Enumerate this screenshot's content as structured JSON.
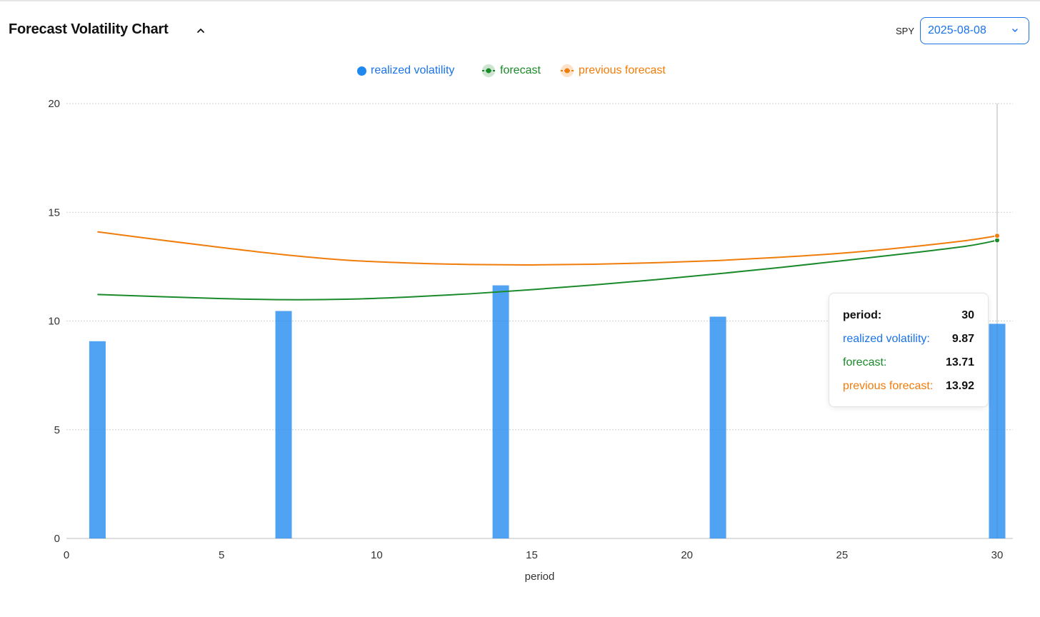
{
  "header": {
    "title": "Forecast Volatility Chart",
    "ticker": "SPY",
    "date_value": "2025-08-08"
  },
  "legend": [
    {
      "name": "realized volatility",
      "color": "#1f88ee"
    },
    {
      "name": "forecast",
      "color": "#1a8a2a"
    },
    {
      "name": "previous forecast",
      "color": "#f07c0a"
    }
  ],
  "tooltip": {
    "period_label": "period:",
    "period_value": "30",
    "rv_label": "realized volatility:",
    "rv_value": "9.87",
    "fc_label": "forecast:",
    "fc_value": "13.71",
    "pf_label": "previous forecast:",
    "pf_value": "13.92"
  },
  "chart_data": {
    "type": "bar",
    "xlabel": "period",
    "ylabel": "",
    "xlim": [
      0,
      30
    ],
    "ylim": [
      0,
      20
    ],
    "xticks": [
      0,
      5,
      10,
      15,
      20,
      25,
      30
    ],
    "yticks": [
      0,
      5,
      10,
      15,
      20
    ],
    "grid": true,
    "legend_position": "top-center",
    "hover_x": 30,
    "series": [
      {
        "name": "realized volatility",
        "type": "bar",
        "color": "#1f88ee",
        "x": [
          1,
          7,
          14,
          21,
          30
        ],
        "values": [
          9.07,
          10.46,
          11.64,
          10.2,
          9.87
        ]
      },
      {
        "name": "forecast",
        "type": "line",
        "color": "#1a8a2a",
        "x": [
          1,
          3,
          5,
          7,
          9,
          11,
          13,
          15,
          17,
          19,
          21,
          23,
          25,
          27,
          29,
          30
        ],
        "values": [
          11.22,
          11.12,
          11.03,
          10.98,
          11.0,
          11.1,
          11.25,
          11.44,
          11.66,
          11.9,
          12.17,
          12.46,
          12.77,
          13.09,
          13.44,
          13.71
        ]
      },
      {
        "name": "previous forecast",
        "type": "line",
        "color": "#f07c0a",
        "x": [
          1,
          3,
          5,
          7,
          9,
          11,
          13,
          15,
          17,
          19,
          21,
          23,
          25,
          27,
          29,
          30
        ],
        "values": [
          14.1,
          13.73,
          13.38,
          13.05,
          12.8,
          12.67,
          12.6,
          12.58,
          12.61,
          12.68,
          12.78,
          12.93,
          13.12,
          13.38,
          13.7,
          13.92
        ]
      }
    ]
  }
}
